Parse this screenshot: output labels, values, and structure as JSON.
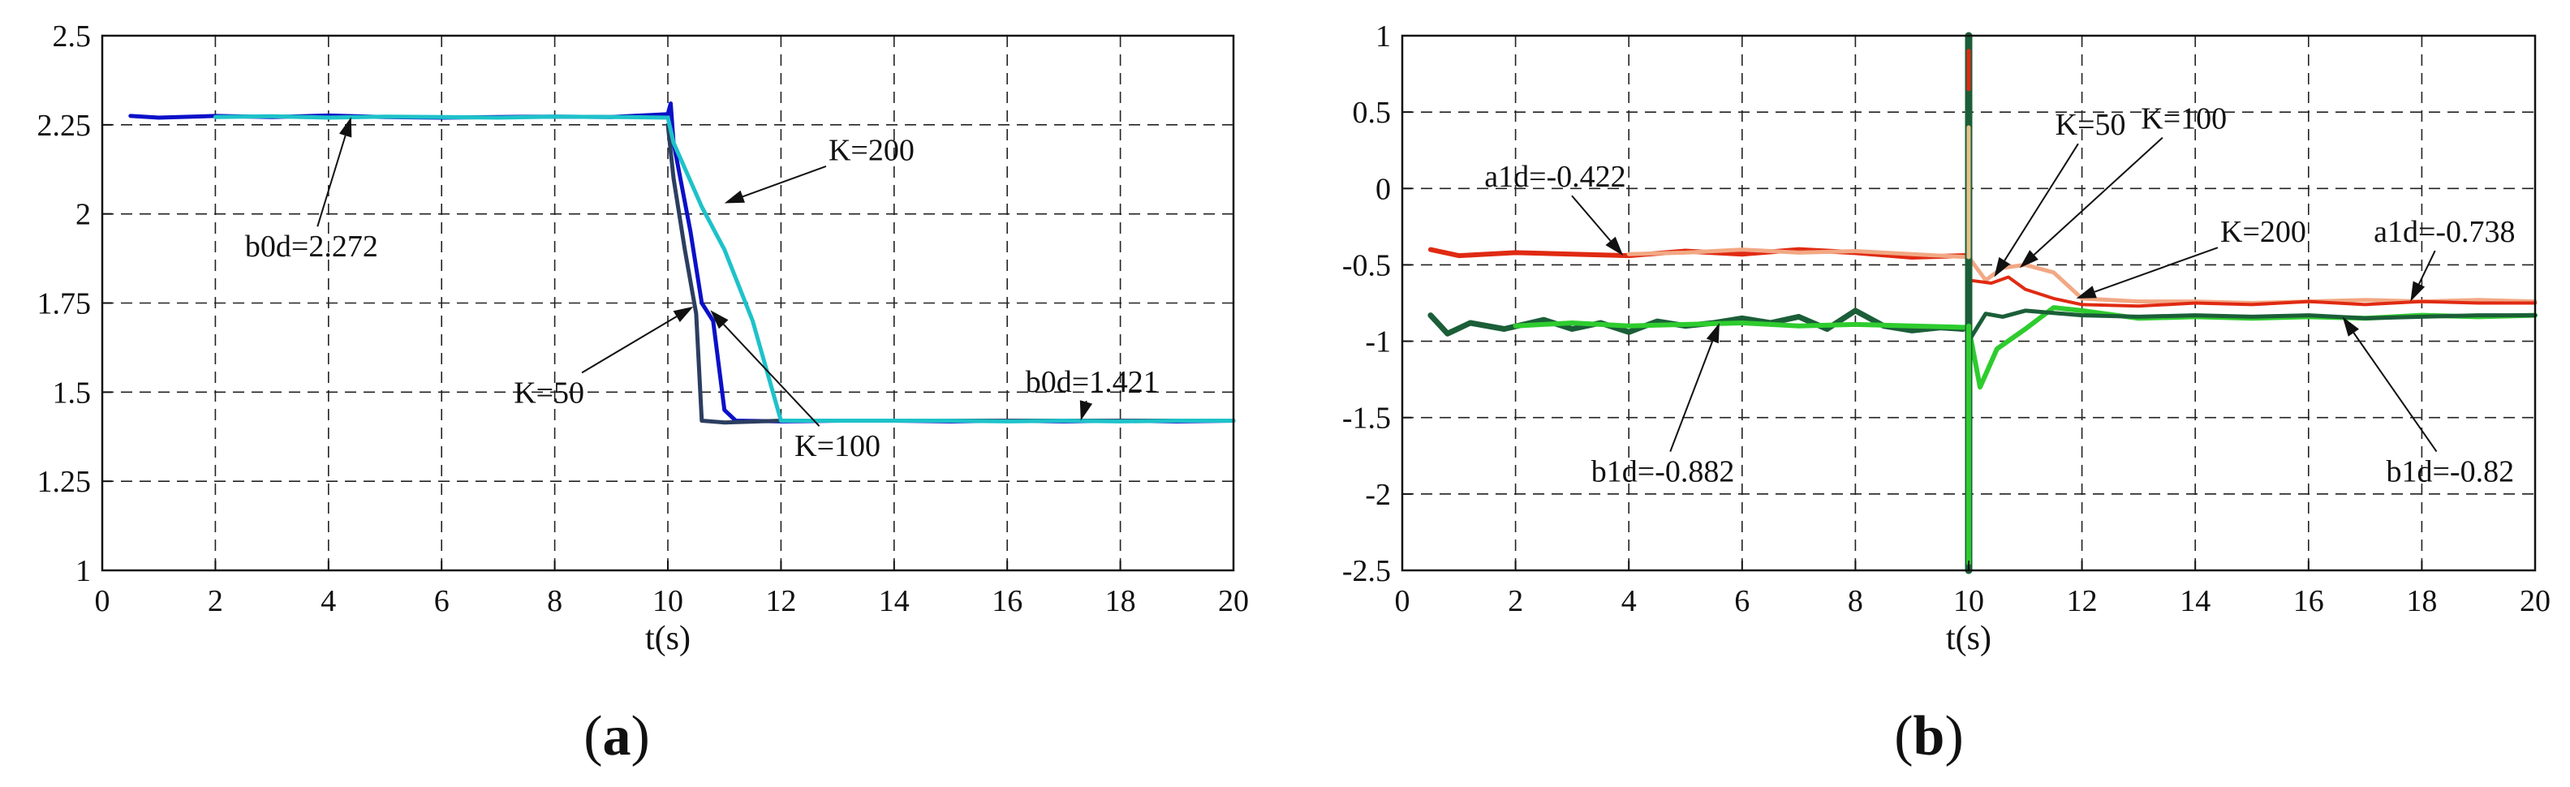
{
  "chart_data": [
    {
      "type": "line",
      "panel_label": "(a)",
      "panel_label_parts": {
        "open": "(",
        "letter": "a",
        "close": ")"
      },
      "xlabel": "t(s)",
      "ylabel": "",
      "xlim": [
        0,
        20
      ],
      "ylim": [
        1,
        2.5
      ],
      "xticks": [
        0,
        2,
        4,
        6,
        8,
        10,
        12,
        14,
        16,
        18,
        20
      ],
      "xtick_labels": [
        "0",
        "2",
        "4",
        "6",
        "8",
        "10",
        "12",
        "14",
        "16",
        "18",
        "20"
      ],
      "yticks": [
        1,
        1.25,
        1.5,
        1.75,
        2,
        2.25,
        2.5
      ],
      "ytick_labels": [
        "1",
        "1.25",
        "1.5",
        "1.75",
        "2",
        "2.25",
        "2.5"
      ],
      "grid": true,
      "series": [
        {
          "color": "#0c10c8",
          "width": 5,
          "points": [
            [
              0.5,
              2.275
            ],
            [
              1,
              2.27
            ],
            [
              2,
              2.275
            ],
            [
              3,
              2.272
            ],
            [
              4,
              2.276
            ],
            [
              5,
              2.272
            ],
            [
              6,
              2.27
            ],
            [
              7,
              2.272
            ],
            [
              8,
              2.273
            ],
            [
              9,
              2.272
            ],
            [
              10,
              2.28
            ],
            [
              10.05,
              2.31
            ],
            [
              10.1,
              2.2
            ],
            [
              10.4,
              1.95
            ],
            [
              10.6,
              1.75
            ],
            [
              10.8,
              1.7
            ],
            [
              11,
              1.45
            ],
            [
              11.2,
              1.42
            ],
            [
              12,
              1.418
            ],
            [
              13,
              1.42
            ],
            [
              14,
              1.42
            ],
            [
              15,
              1.418
            ],
            [
              16,
              1.42
            ],
            [
              17,
              1.418
            ],
            [
              18,
              1.42
            ],
            [
              19,
              1.418
            ],
            [
              20,
              1.42
            ]
          ]
        },
        {
          "color": "#2c3e60",
          "width": 5,
          "points": [
            [
              10,
              2.25
            ],
            [
              10.1,
              2.1
            ],
            [
              10.3,
              1.9
            ],
            [
              10.5,
              1.72
            ],
            [
              10.6,
              1.42
            ],
            [
              11,
              1.415
            ],
            [
              12,
              1.42
            ],
            [
              14,
              1.42
            ],
            [
              16,
              1.42
            ],
            [
              18,
              1.42
            ],
            [
              20,
              1.42
            ]
          ]
        },
        {
          "color": "#1ec2c9",
          "width": 5,
          "points": [
            [
              2,
              2.272
            ],
            [
              3,
              2.274
            ],
            [
              4,
              2.27
            ],
            [
              5,
              2.273
            ],
            [
              6,
              2.272
            ],
            [
              7,
              2.27
            ],
            [
              8,
              2.273
            ],
            [
              9,
              2.272
            ],
            [
              10,
              2.27
            ],
            [
              10.1,
              2.2
            ],
            [
              10.6,
              2.02
            ],
            [
              11,
              1.9
            ],
            [
              11.5,
              1.7
            ],
            [
              12,
              1.42
            ],
            [
              13,
              1.42
            ],
            [
              14,
              1.42
            ],
            [
              15,
              1.42
            ],
            [
              16,
              1.418
            ],
            [
              17,
              1.42
            ],
            [
              18,
              1.418
            ],
            [
              19,
              1.42
            ],
            [
              20,
              1.42
            ]
          ]
        }
      ],
      "annotations": [
        {
          "text": "b0d=2.272",
          "at": [
            4.4,
            2.272
          ],
          "label_at": [
            3.7,
            1.91
          ]
        },
        {
          "text": "K=200",
          "at": [
            11.0,
            2.03
          ],
          "label_at": [
            13.6,
            2.18
          ]
        },
        {
          "text": "K=50",
          "at": [
            10.45,
            1.74
          ],
          "label_at": [
            7.9,
            1.5
          ]
        },
        {
          "text": "K=100",
          "at": [
            10.75,
            1.73
          ],
          "label_at": [
            13.0,
            1.35
          ]
        },
        {
          "text": "b0d=1.421",
          "at": [
            17.3,
            1.42
          ],
          "label_at": [
            17.5,
            1.53
          ]
        }
      ]
    },
    {
      "type": "line",
      "panel_label": "(b)",
      "panel_label_parts": {
        "open": "(",
        "letter": "b",
        "close": ")"
      },
      "xlabel": "t(s)",
      "ylabel": "",
      "xlim": [
        0,
        20
      ],
      "ylim": [
        -2.5,
        1
      ],
      "xticks": [
        0,
        2,
        4,
        6,
        8,
        10,
        12,
        14,
        16,
        18,
        20
      ],
      "xtick_labels": [
        "0",
        "2",
        "4",
        "6",
        "8",
        "10",
        "12",
        "14",
        "16",
        "18",
        "20"
      ],
      "yticks": [
        -2.5,
        -2,
        -1.5,
        -1,
        -0.5,
        0,
        0.5,
        1
      ],
      "ytick_labels": [
        "-2.5",
        "-2",
        "-1.5",
        "-1",
        "-0.5",
        "0",
        "0.5",
        "1"
      ],
      "grid": true,
      "series": [
        {
          "color": "#e02a12",
          "width": 6,
          "points": [
            [
              0.5,
              -0.4
            ],
            [
              1,
              -0.44
            ],
            [
              2,
              -0.42
            ],
            [
              3,
              -0.43
            ],
            [
              4,
              -0.44
            ],
            [
              5,
              -0.41
            ],
            [
              6,
              -0.43
            ],
            [
              7,
              -0.4
            ],
            [
              8,
              -0.42
            ],
            [
              9,
              -0.45
            ],
            [
              9.9,
              -0.44
            ],
            [
              10,
              -0.44
            ]
          ]
        },
        {
          "color": "#f2a884",
          "width": 5,
          "points": [
            [
              4,
              -0.43
            ],
            [
              5,
              -0.42
            ],
            [
              6,
              -0.4
            ],
            [
              7,
              -0.42
            ],
            [
              8,
              -0.41
            ],
            [
              9,
              -0.43
            ],
            [
              10,
              -0.45
            ],
            [
              10.3,
              -0.6
            ],
            [
              10.6,
              -0.52
            ],
            [
              11,
              -0.5
            ],
            [
              11.5,
              -0.55
            ],
            [
              12,
              -0.72
            ],
            [
              13,
              -0.74
            ],
            [
              14,
              -0.74
            ],
            [
              15,
              -0.75
            ],
            [
              16,
              -0.74
            ],
            [
              17,
              -0.73
            ],
            [
              18,
              -0.74
            ],
            [
              19,
              -0.73
            ],
            [
              20,
              -0.74
            ]
          ]
        },
        {
          "color": "#e02a12",
          "width": 4,
          "points": [
            [
              10,
              -0.6
            ],
            [
              10.4,
              -0.62
            ],
            [
              10.7,
              -0.58
            ],
            [
              11,
              -0.66
            ],
            [
              11.5,
              -0.72
            ],
            [
              12,
              -0.76
            ],
            [
              13,
              -0.77
            ],
            [
              14,
              -0.75
            ],
            [
              15,
              -0.76
            ],
            [
              16,
              -0.74
            ],
            [
              17,
              -0.76
            ],
            [
              18,
              -0.74
            ],
            [
              19,
              -0.75
            ],
            [
              20,
              -0.75
            ]
          ]
        },
        {
          "color": "#1b5e38",
          "width": 7,
          "points": [
            [
              0.5,
              -0.83
            ],
            [
              0.8,
              -0.95
            ],
            [
              1.2,
              -0.88
            ],
            [
              1.8,
              -0.92
            ],
            [
              2.5,
              -0.86
            ],
            [
              3,
              -0.92
            ],
            [
              3.5,
              -0.88
            ],
            [
              4,
              -0.94
            ],
            [
              4.5,
              -0.87
            ],
            [
              5,
              -0.9
            ],
            [
              5.5,
              -0.88
            ],
            [
              6,
              -0.85
            ],
            [
              6.5,
              -0.88
            ],
            [
              7,
              -0.84
            ],
            [
              7.5,
              -0.92
            ],
            [
              8,
              -0.8
            ],
            [
              8.5,
              -0.9
            ],
            [
              9,
              -0.93
            ],
            [
              9.5,
              -0.91
            ],
            [
              9.9,
              -0.92
            ]
          ]
        },
        {
          "color": "#2ecc2e",
          "width": 6,
          "points": [
            [
              2,
              -0.9
            ],
            [
              3,
              -0.88
            ],
            [
              4,
              -0.9
            ],
            [
              5,
              -0.89
            ],
            [
              6,
              -0.88
            ],
            [
              7,
              -0.9
            ],
            [
              8,
              -0.89
            ],
            [
              9,
              -0.9
            ],
            [
              10,
              -0.91
            ],
            [
              10.2,
              -1.3
            ],
            [
              10.5,
              -1.05
            ],
            [
              11,
              -0.92
            ],
            [
              11.5,
              -0.78
            ],
            [
              12,
              -0.8
            ],
            [
              13,
              -0.85
            ],
            [
              14,
              -0.84
            ],
            [
              15,
              -0.85
            ],
            [
              16,
              -0.84
            ],
            [
              17,
              -0.85
            ],
            [
              18,
              -0.83
            ],
            [
              19,
              -0.84
            ],
            [
              20,
              -0.83
            ]
          ]
        },
        {
          "color": "#1b5e38",
          "width": 5,
          "points": [
            [
              10,
              -1.0
            ],
            [
              10.3,
              -0.82
            ],
            [
              10.6,
              -0.84
            ],
            [
              11,
              -0.8
            ],
            [
              12,
              -0.83
            ],
            [
              13,
              -0.84
            ],
            [
              14,
              -0.83
            ],
            [
              15,
              -0.84
            ],
            [
              16,
              -0.83
            ],
            [
              17,
              -0.85
            ],
            [
              18,
              -0.84
            ],
            [
              19,
              -0.83
            ],
            [
              20,
              -0.83
            ]
          ]
        },
        {
          "color": "#1b5e38",
          "width": 9,
          "points": [
            [
              10,
              1.0
            ],
            [
              10,
              -2.5
            ]
          ]
        },
        {
          "color": "#e02a12",
          "width": 5,
          "points": [
            [
              10,
              0.9
            ],
            [
              10,
              0.65
            ]
          ]
        },
        {
          "color": "#e02a12",
          "width": 5,
          "points": [
            [
              10,
              0.2
            ],
            [
              10,
              -0.05
            ]
          ]
        },
        {
          "color": "#e8c08a",
          "width": 5,
          "points": [
            [
              10,
              0.4
            ],
            [
              10,
              -0.45
            ]
          ]
        },
        {
          "color": "#2ecc2e",
          "width": 6,
          "points": [
            [
              10,
              -0.9
            ],
            [
              10,
              -2.45
            ]
          ]
        }
      ],
      "annotations": [
        {
          "text": "a1d=-0.422",
          "at": [
            3.9,
            -0.44
          ],
          "label_at": [
            2.7,
            0.08
          ]
        },
        {
          "text": "K=50",
          "at": [
            10.45,
            -0.58
          ],
          "label_at": [
            12.15,
            0.42
          ]
        },
        {
          "text": "K=100",
          "at": [
            10.9,
            -0.52
          ],
          "label_at": [
            13.8,
            0.46
          ]
        },
        {
          "text": "K=200",
          "at": [
            11.9,
            -0.72
          ],
          "label_at": [
            15.2,
            -0.28
          ]
        },
        {
          "text": "a1d=-0.738",
          "at": [
            17.8,
            -0.74
          ],
          "label_at": [
            18.4,
            -0.28
          ]
        },
        {
          "text": "b1d=-0.882",
          "at": [
            5.6,
            -0.88
          ],
          "label_at": [
            4.6,
            -1.85
          ]
        },
        {
          "text": "b1d=-0.82",
          "at": [
            16.6,
            -0.84
          ],
          "label_at": [
            18.5,
            -1.85
          ]
        }
      ]
    }
  ]
}
